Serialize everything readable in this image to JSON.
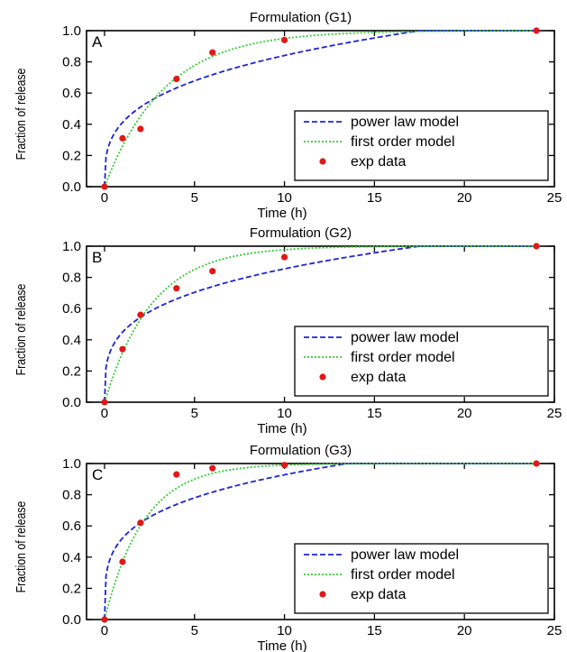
{
  "chart_data": [
    {
      "type": "line",
      "title": "Formulation (G1)",
      "panel_label": "A",
      "xlabel": "Time (h)",
      "ylabel": "Fraction of release",
      "xlim": [
        -1,
        25
      ],
      "ylim": [
        0,
        1.0
      ],
      "xticks": [
        "0",
        "5",
        "10",
        "15",
        "20",
        "25"
      ],
      "yticks": [
        "0.0",
        "0.2",
        "0.4",
        "0.6",
        "0.8",
        "1.0"
      ],
      "grid": false,
      "legend_position": "bottom-right",
      "series": [
        {
          "name": "power law model",
          "style": "dashed",
          "color": "#1f24d6",
          "n": 0.31,
          "t_sat": 17.5
        },
        {
          "name": "first order model",
          "style": "dotted",
          "color": "#33cc33",
          "k": 0.3
        },
        {
          "name": "exp data",
          "style": "markers",
          "color": "#e01818",
          "x": [
            0,
            1,
            2,
            4,
            6,
            10,
            24
          ],
          "y": [
            0.0,
            0.31,
            0.37,
            0.69,
            0.86,
            0.94,
            1.0
          ]
        }
      ]
    },
    {
      "type": "line",
      "title": "Formulation (G2)",
      "panel_label": "B",
      "xlabel": "Time (h)",
      "ylabel": "Fraction of release",
      "xlim": [
        -1,
        25
      ],
      "ylim": [
        0,
        1.0
      ],
      "xticks": [
        "0",
        "5",
        "10",
        "15",
        "20",
        "25"
      ],
      "yticks": [
        "0.0",
        "0.2",
        "0.4",
        "0.6",
        "0.8",
        "1.0"
      ],
      "grid": false,
      "legend_position": "bottom-right",
      "series": [
        {
          "name": "power law model",
          "style": "dashed",
          "color": "#1f24d6",
          "n": 0.28,
          "t_sat": 17.5
        },
        {
          "name": "first order model",
          "style": "dotted",
          "color": "#33cc33",
          "k": 0.38
        },
        {
          "name": "exp data",
          "style": "markers",
          "color": "#e01818",
          "x": [
            0,
            1,
            2,
            4,
            6,
            10,
            24
          ],
          "y": [
            0.0,
            0.34,
            0.56,
            0.73,
            0.84,
            0.93,
            1.0
          ]
        }
      ]
    },
    {
      "type": "line",
      "title": "Formulation (G3)",
      "panel_label": "C",
      "xlabel": "Time (h)",
      "ylabel": "Fraction of release",
      "xlim": [
        -1,
        25
      ],
      "ylim": [
        0,
        1.0
      ],
      "xticks": [
        "0",
        "5",
        "10",
        "15",
        "20",
        "25"
      ],
      "yticks": [
        "0.0",
        "0.2",
        "0.4",
        "0.6",
        "0.8",
        "1.0"
      ],
      "grid": false,
      "legend_position": "bottom-right",
      "series": [
        {
          "name": "power law model",
          "style": "dashed",
          "color": "#1f24d6",
          "n": 0.25,
          "t_sat": 13.5
        },
        {
          "name": "first order model",
          "style": "dotted",
          "color": "#33cc33",
          "k": 0.46
        },
        {
          "name": "exp data",
          "style": "markers",
          "color": "#e01818",
          "x": [
            0,
            1,
            2,
            4,
            6,
            10,
            24
          ],
          "y": [
            0.0,
            0.37,
            0.62,
            0.93,
            0.97,
            0.99,
            1.0
          ]
        }
      ]
    }
  ]
}
